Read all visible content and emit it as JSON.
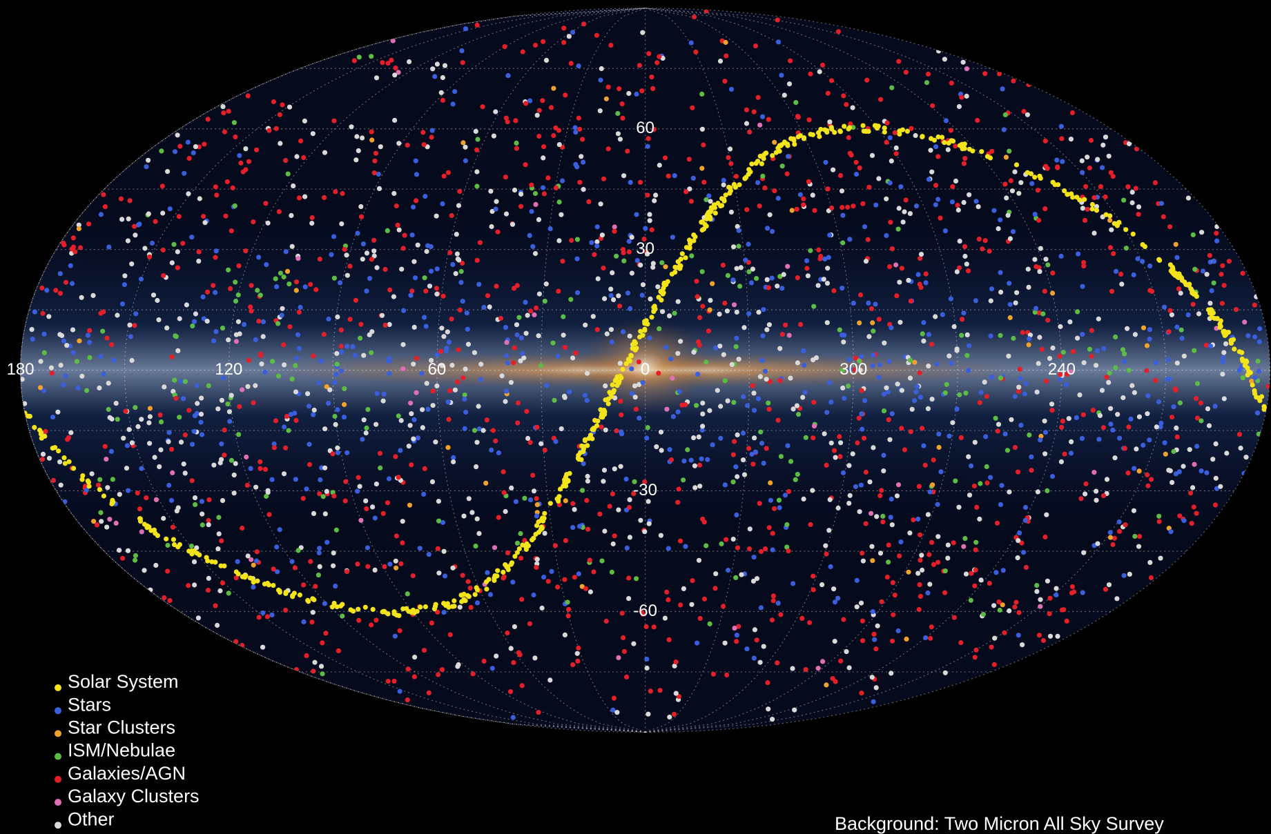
{
  "map": {
    "longitude_labels": [
      180,
      120,
      60,
      0,
      300,
      240
    ],
    "latitude_labels": [
      60,
      30,
      -30,
      -60
    ],
    "legend": [
      {
        "name": "Solar System",
        "color": "#f2e31b"
      },
      {
        "name": "Stars",
        "color": "#3b5fdc"
      },
      {
        "name": "Star Clusters",
        "color": "#f0a22e"
      },
      {
        "name": "ISM/Nebulae",
        "color": "#5cbc46"
      },
      {
        "name": "Galaxies/AGN",
        "color": "#e3202a"
      },
      {
        "name": "Galaxy Clusters",
        "color": "#e070b4"
      },
      {
        "name": "Other",
        "color": "#d9d9d9"
      }
    ],
    "credit": "Background: Two Micron All Sky Survey"
  }
}
